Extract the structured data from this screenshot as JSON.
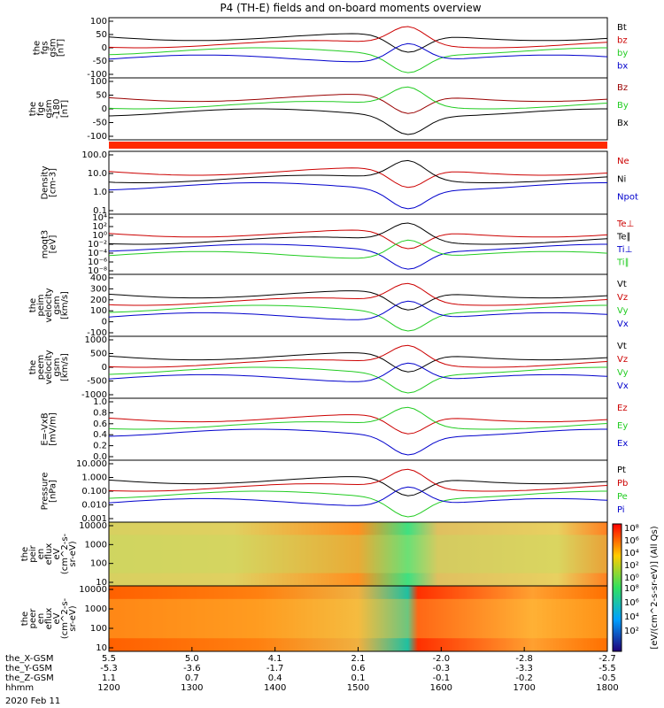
{
  "chart_data": {
    "type": "line",
    "title": "P4 (TH-E) fields and on-board moments overview",
    "date": "2020 Feb 11",
    "panels": [
      {
        "id": "fgs",
        "ylabel": [
          "the",
          "fgs",
          "gsm",
          "[nT]"
        ],
        "yticks": [
          "100",
          "50",
          "0",
          "-50",
          "-100"
        ],
        "ylim": [
          -100,
          100
        ],
        "legend": [
          {
            "name": "Bt",
            "color": "#000000"
          },
          {
            "name": "bz",
            "color": "#cc0000"
          },
          {
            "name": "by",
            "color": "#22cc22"
          },
          {
            "name": "bx",
            "color": "#0000cc"
          }
        ]
      },
      {
        "id": "fge",
        "ylabel": [
          "the",
          "fge",
          "gsm",
          "-180",
          "[nT]"
        ],
        "yticks": [
          "100",
          "50",
          "0",
          "-50",
          "-100"
        ],
        "ylim": [
          -120,
          120
        ],
        "legend": [
          {
            "name": "Bz",
            "color": "#990000"
          },
          {
            "name": "By",
            "color": "#22cc22"
          },
          {
            "name": "Bx",
            "color": "#000000"
          }
        ]
      },
      {
        "id": "density",
        "ylabel": [
          "Density",
          "[cm-3]"
        ],
        "yticks": [
          "100.0",
          "10.0",
          "1.0",
          "0.1"
        ],
        "ylim": [
          0.05,
          200
        ],
        "legend": [
          {
            "name": "Ne",
            "color": "#cc0000"
          },
          {
            "name": "Ni",
            "color": "#000000"
          },
          {
            "name": "Npot",
            "color": "#0000cc"
          }
        ]
      },
      {
        "id": "temp",
        "ylabel": [
          "moqt3",
          "[eV]"
        ],
        "yticks": [
          "10⁴",
          "10²",
          "10⁰",
          "10⁻²",
          "10⁻⁴",
          "10⁻⁶",
          "10⁻⁸"
        ],
        "ylim": [
          1e-10,
          100000.0
        ],
        "legend": [
          {
            "name": "Te⊥",
            "color": "#cc0000"
          },
          {
            "name": "Te∥",
            "color": "#000000"
          },
          {
            "name": "Ti⊥",
            "color": "#0000cc"
          },
          {
            "name": "Ti∥",
            "color": "#22cc22"
          }
        ]
      },
      {
        "id": "peim",
        "ylabel": [
          "the",
          "peim",
          "velocity",
          "gsm",
          "[km/s]"
        ],
        "yticks": [
          "400",
          "300",
          "200",
          "100",
          "0",
          "-100"
        ],
        "ylim": [
          -150,
          450
        ],
        "legend": [
          {
            "name": "Vt",
            "color": "#000000"
          },
          {
            "name": "Vz",
            "color": "#cc0000"
          },
          {
            "name": "Vy",
            "color": "#22cc22"
          },
          {
            "name": "Vx",
            "color": "#0000cc"
          }
        ]
      },
      {
        "id": "peem",
        "ylabel": [
          "the",
          "peem",
          "velocity",
          "gsm",
          "[km/s]"
        ],
        "yticks": [
          "1000",
          "500",
          "0",
          "-500",
          "-1000"
        ],
        "ylim": [
          -1050,
          1100
        ],
        "legend": [
          {
            "name": "Vt",
            "color": "#000000"
          },
          {
            "name": "Vz",
            "color": "#cc0000"
          },
          {
            "name": "Vy",
            "color": "#22cc22"
          },
          {
            "name": "Vx",
            "color": "#0000cc"
          }
        ]
      },
      {
        "id": "efield",
        "ylabel": [
          "E=-VxB",
          "[mV/m]"
        ],
        "yticks": [
          "1.0",
          "0.8",
          "0.6",
          "0.4",
          "0.2",
          "0.0"
        ],
        "ylim": [
          0,
          1
        ],
        "legend": [
          {
            "name": "Ez",
            "color": "#cc0000"
          },
          {
            "name": "Ey",
            "color": "#22cc22"
          },
          {
            "name": "Ex",
            "color": "#0000cc"
          }
        ]
      },
      {
        "id": "pressure",
        "ylabel": [
          "Pressure",
          "[nPa]"
        ],
        "yticks": [
          "10.000",
          "1.000",
          "0.100",
          "0.010",
          "0.001"
        ],
        "ylim": [
          0.001,
          30
        ],
        "legend": [
          {
            "name": "Pt",
            "color": "#000000"
          },
          {
            "name": "Pb",
            "color": "#cc0000"
          },
          {
            "name": "Pe",
            "color": "#22cc22"
          },
          {
            "name": "Pi",
            "color": "#0000cc"
          }
        ]
      },
      {
        "id": "peir",
        "ylabel": [
          "the",
          "peir",
          "en",
          "eflux",
          "eV",
          "(cm^2-s-",
          "sr-eV)"
        ],
        "yticks": [
          "10000",
          "1000",
          "100",
          "10"
        ],
        "type": "spectrogram",
        "legend": []
      },
      {
        "id": "peer",
        "ylabel": [
          "the",
          "peer",
          "en",
          "eflux",
          "eV",
          "(cm^2-s-",
          "sr-eV)"
        ],
        "yticks": [
          "10000",
          "1000",
          "100",
          "10"
        ],
        "type": "spectrogram",
        "legend": []
      }
    ],
    "colorbar": {
      "ticks": [
        "10⁸",
        "10⁶",
        "10⁴",
        "10²",
        "10⁰"
      ],
      "label": "[eV/(cm^2-s-sr-eV)] (All Qs)",
      "ticks2": [
        "10⁸",
        "10⁶",
        "10⁴",
        "10²"
      ]
    },
    "x_axis": {
      "row_labels": [
        "the_X-GSM",
        "the_Y-GSM",
        "the_Z-GSM",
        "hhmm"
      ],
      "columns": [
        {
          "hhmm": "1200",
          "x": "5.5",
          "y": "-5.3",
          "z": "1.1"
        },
        {
          "hhmm": "1300",
          "x": "5.0",
          "y": "-3.6",
          "z": "0.7"
        },
        {
          "hhmm": "1400",
          "x": "4.1",
          "y": "-1.7",
          "z": "0.4"
        },
        {
          "hhmm": "1500",
          "x": "2.1",
          "y": "0.6",
          "z": "0.1"
        },
        {
          "hhmm": "1600",
          "x": "-2.0",
          "y": "-0.3",
          "z": "-0.1"
        },
        {
          "hhmm": "1700",
          "x": "-2.8",
          "y": "-3.3",
          "z": "-0.2"
        },
        {
          "hhmm": "1800",
          "x": "-2.7",
          "y": "-5.5",
          "z": "-0.5"
        }
      ]
    }
  }
}
